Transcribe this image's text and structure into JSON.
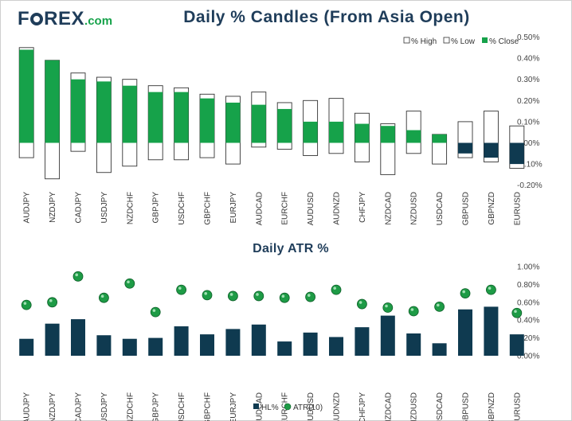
{
  "logo": {
    "text_part1": "F",
    "text_part2": "REX",
    "text_suffix": ".com"
  },
  "colors": {
    "navy": "#1f3d5a",
    "green": "#16a24a",
    "bar_dark": "#0f3a50",
    "dot_green": "#1e9b46"
  },
  "chart_data": [
    {
      "type": "candlestick",
      "title": "Daily % Candles (From Asia Open)",
      "categories": [
        "AUDJPY",
        "NZDJPY",
        "CADJPY",
        "USDJPY",
        "NZDCHF",
        "GBPJPY",
        "USDCHF",
        "GBPCHF",
        "EURJPY",
        "AUDCAD",
        "EURCHF",
        "AUDUSD",
        "AUDNZD",
        "CHFJPY",
        "NZDCAD",
        "NZDUSD",
        "USDCAD",
        "GBPUSD",
        "GBPNZD",
        "EURUSD"
      ],
      "series": [
        {
          "name": "% High",
          "values": [
            0.45,
            0.39,
            0.33,
            0.31,
            0.3,
            0.27,
            0.26,
            0.23,
            0.22,
            0.24,
            0.19,
            0.2,
            0.21,
            0.14,
            0.09,
            0.15,
            0.04,
            0.1,
            0.15,
            0.08
          ]
        },
        {
          "name": "% Low",
          "values": [
            -0.07,
            -0.17,
            -0.04,
            -0.14,
            -0.11,
            -0.08,
            -0.08,
            -0.07,
            -0.1,
            -0.02,
            -0.03,
            -0.06,
            -0.05,
            -0.09,
            -0.15,
            -0.05,
            -0.1,
            -0.07,
            -0.09,
            -0.12
          ]
        },
        {
          "name": "% Close",
          "values": [
            0.44,
            0.39,
            0.3,
            0.29,
            0.27,
            0.24,
            0.24,
            0.21,
            0.19,
            0.18,
            0.16,
            0.1,
            0.1,
            0.09,
            0.08,
            0.06,
            0.04,
            -0.05,
            -0.07,
            -0.1
          ]
        }
      ],
      "yticks": [
        "0.50%",
        "0.40%",
        "0.30%",
        "0.20%",
        "0.10%",
        "0.00%",
        "-0.10%",
        "-0.20%"
      ],
      "ylim": [
        -0.2,
        0.5
      ],
      "legend": [
        "% High",
        "% Low",
        "% Close"
      ]
    },
    {
      "type": "bar+scatter",
      "title": "Daily ATR %",
      "categories": [
        "AUDJPY",
        "NZDJPY",
        "CADJPY",
        "USDJPY",
        "NZDCHF",
        "GBPJPY",
        "USDCHF",
        "GBPCHF",
        "EURJPY",
        "AUDCAD",
        "EURCHF",
        "AUDUSD",
        "AUDNZD",
        "CHFJPY",
        "NZDCAD",
        "NZDUSD",
        "USDCAD",
        "GBPUSD",
        "GBPNZD",
        "EURUSD"
      ],
      "series": [
        {
          "name": "HL%",
          "type": "bar",
          "values": [
            0.19,
            0.36,
            0.41,
            0.23,
            0.19,
            0.2,
            0.33,
            0.24,
            0.3,
            0.35,
            0.16,
            0.26,
            0.21,
            0.32,
            0.45,
            0.25,
            0.14,
            0.52,
            0.55,
            0.24
          ]
        },
        {
          "name": "ATR(10)",
          "type": "scatter",
          "values": [
            0.57,
            0.6,
            0.89,
            0.65,
            0.81,
            0.49,
            0.74,
            0.68,
            0.67,
            0.67,
            0.65,
            0.66,
            0.74,
            0.58,
            0.54,
            0.5,
            0.55,
            0.7,
            0.74,
            0.48
          ]
        }
      ],
      "yticks": [
        "1.00%",
        "0.80%",
        "0.60%",
        "0.40%",
        "0.20%",
        "0.00%"
      ],
      "ylim": [
        0,
        1.0
      ],
      "legend": [
        "HL%",
        "ATR(10)"
      ]
    }
  ]
}
